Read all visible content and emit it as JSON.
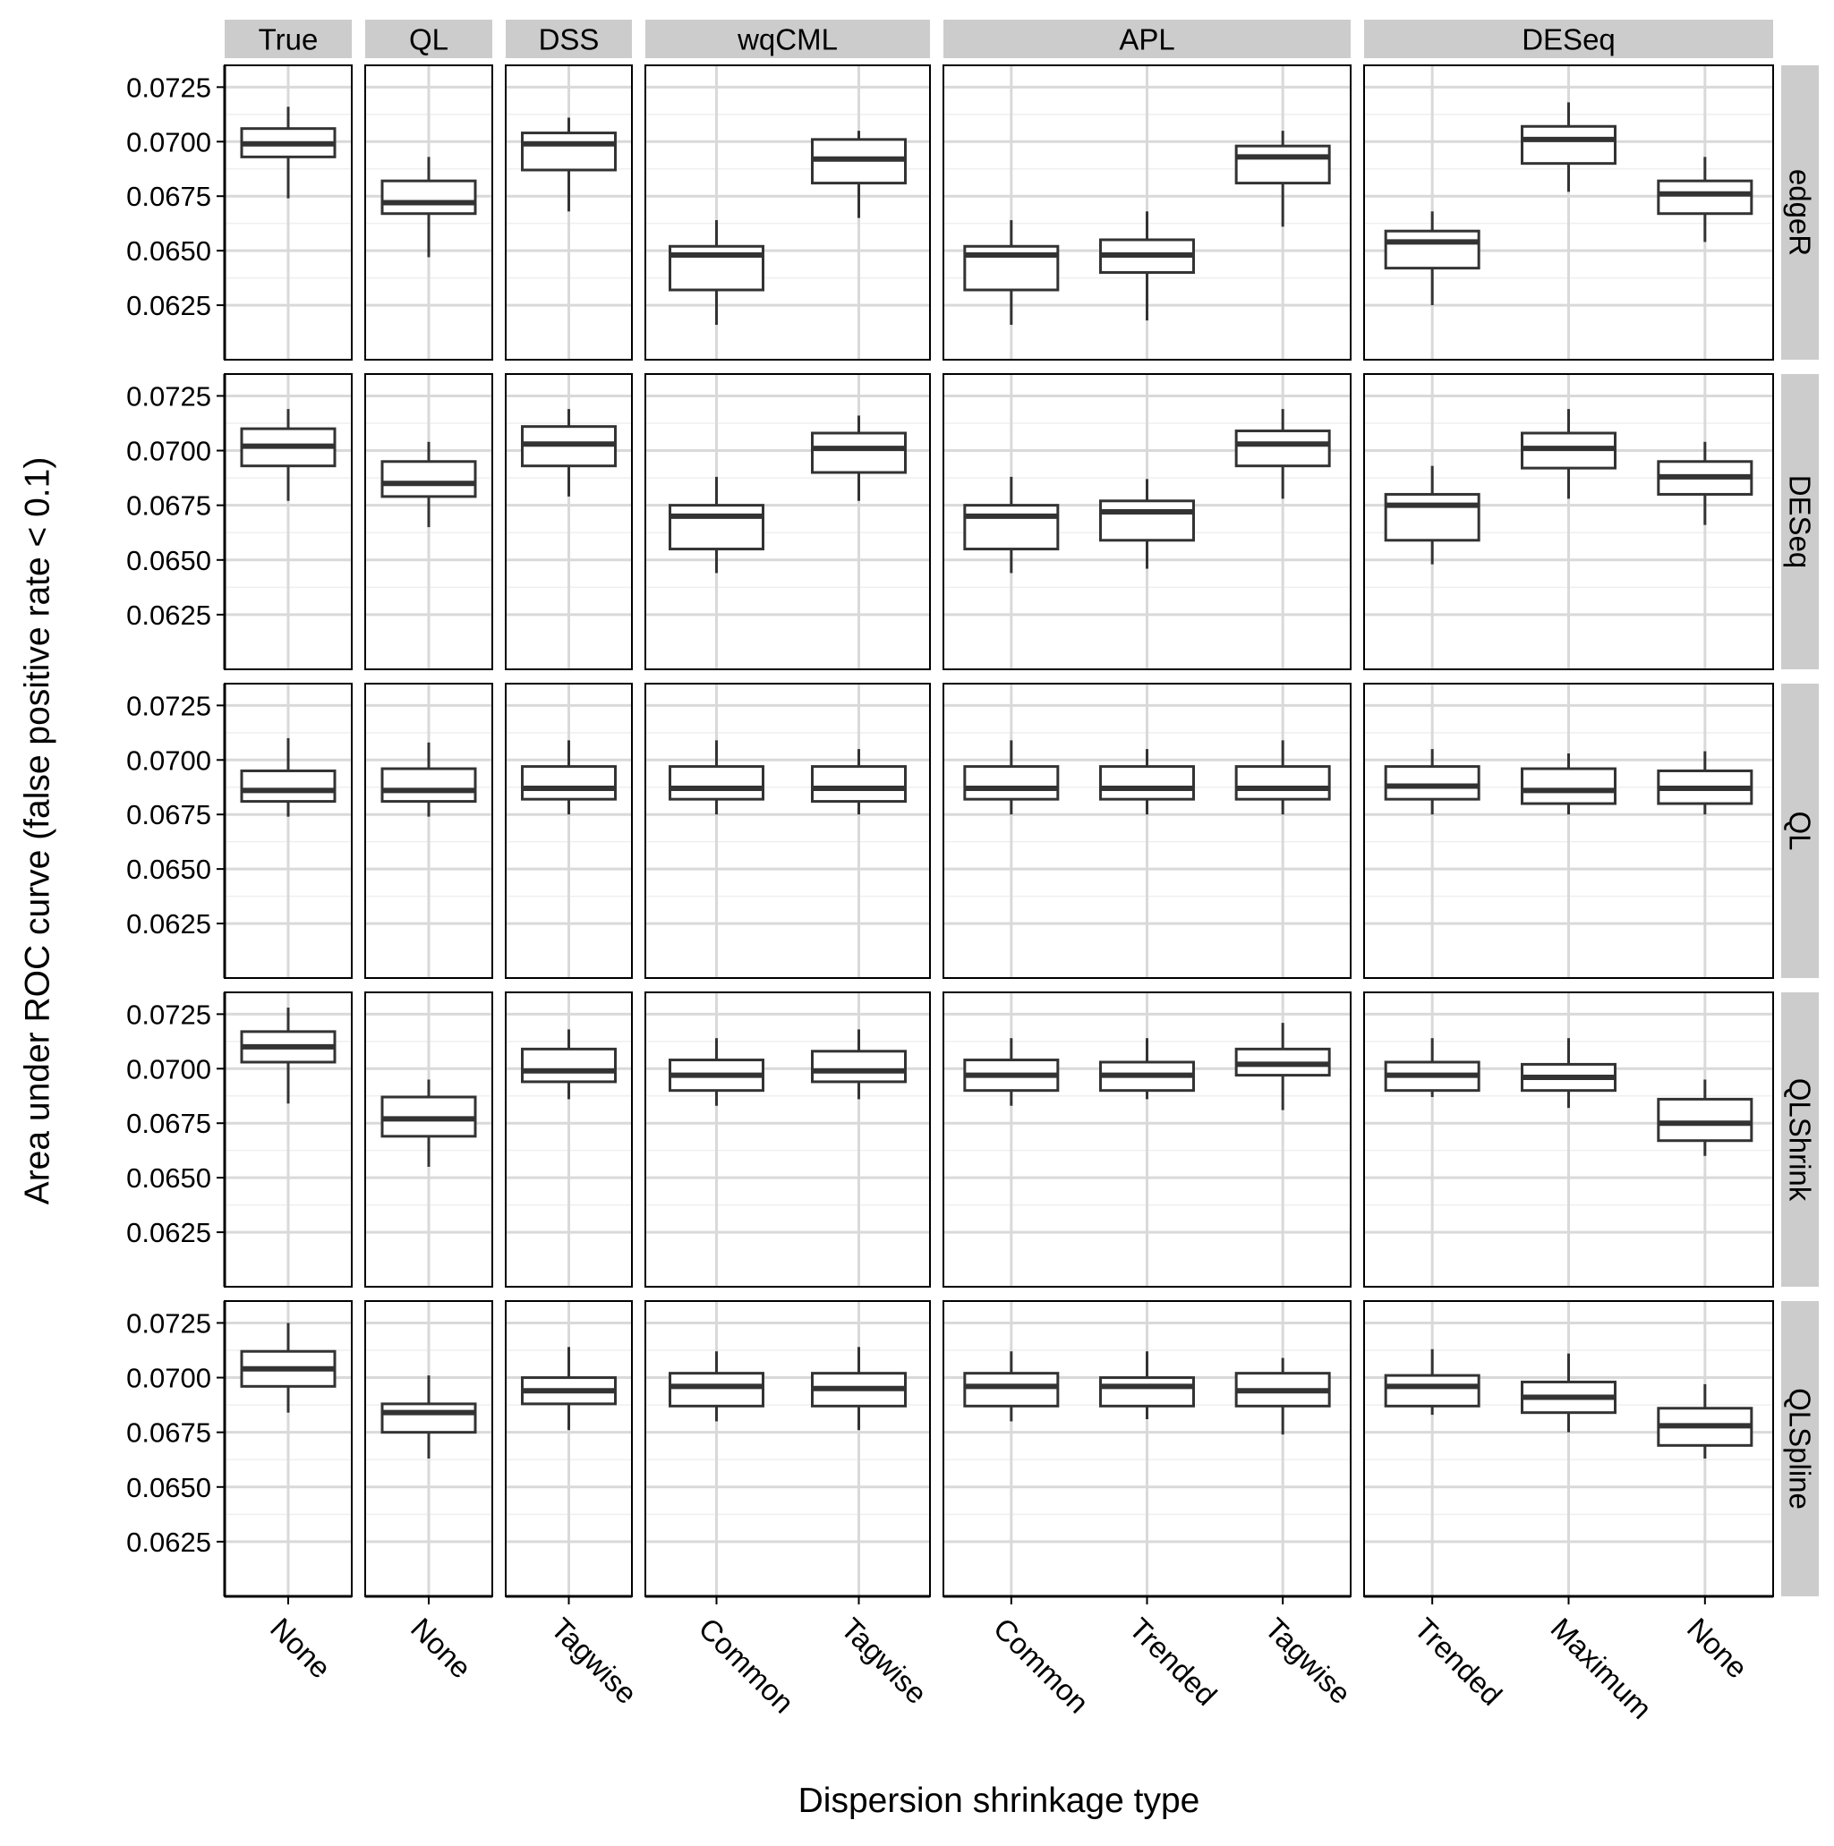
{
  "chart_data": {
    "type": "boxplot",
    "xlabel": "Dispersion shrinkage type",
    "ylabel": "Area under ROC curve (false positive rate < 0.1)",
    "ylim": [
      0.06,
      0.0735
    ],
    "yticks": [
      0.0625,
      0.065,
      0.0675,
      0.07,
      0.0725
    ],
    "ytick_labels": [
      "0.0625",
      "0.0650",
      "0.0675",
      "0.0700",
      "0.0725"
    ],
    "grid": true,
    "colors": {
      "panel_bg": "#ffffff",
      "grid_major": "#d9d9d9",
      "grid_minor": "#efefef",
      "strip_bg": "#cccccc",
      "box_stroke": "#333333",
      "panel_border": "#000000"
    },
    "columns": [
      {
        "label": "True",
        "categories": [
          "None"
        ]
      },
      {
        "label": "QL",
        "categories": [
          "None"
        ]
      },
      {
        "label": "DSS",
        "categories": [
          "Tagwise"
        ]
      },
      {
        "label": "wqCML",
        "categories": [
          "Common",
          "Tagwise"
        ]
      },
      {
        "label": "APL",
        "categories": [
          "Common",
          "Trended",
          "Tagwise"
        ]
      },
      {
        "label": "DESeq",
        "categories": [
          "Trended",
          "Maximum",
          "None"
        ]
      }
    ],
    "rows": [
      {
        "label": "edgeR",
        "boxes": [
          [
            [
              0.0674,
              0.0693,
              0.0699,
              0.0706,
              0.0716
            ]
          ],
          [
            [
              0.0647,
              0.0667,
              0.0672,
              0.0682,
              0.0693
            ]
          ],
          [
            [
              0.0668,
              0.0687,
              0.0699,
              0.0704,
              0.0711
            ]
          ],
          [
            [
              0.0616,
              0.0632,
              0.0648,
              0.0652,
              0.0664
            ],
            [
              0.0665,
              0.0681,
              0.0692,
              0.0701,
              0.0705
            ]
          ],
          [
            [
              0.0616,
              0.0632,
              0.0648,
              0.0652,
              0.0664
            ],
            [
              0.0618,
              0.064,
              0.0648,
              0.0655,
              0.0668
            ],
            [
              0.0661,
              0.0681,
              0.0693,
              0.0698,
              0.0705
            ]
          ],
          [
            [
              0.0625,
              0.0642,
              0.0654,
              0.0659,
              0.0668
            ],
            [
              0.0677,
              0.069,
              0.0701,
              0.0707,
              0.0718
            ],
            [
              0.0654,
              0.0667,
              0.0676,
              0.0682,
              0.0693
            ]
          ]
        ]
      },
      {
        "label": "DESeq",
        "boxes": [
          [
            [
              0.0677,
              0.0693,
              0.0702,
              0.071,
              0.0719
            ]
          ],
          [
            [
              0.0665,
              0.0679,
              0.0685,
              0.0695,
              0.0704
            ]
          ],
          [
            [
              0.0679,
              0.0693,
              0.0703,
              0.0711,
              0.0719
            ]
          ],
          [
            [
              0.0644,
              0.0655,
              0.067,
              0.0675,
              0.0688
            ],
            [
              0.0677,
              0.069,
              0.0701,
              0.0708,
              0.0716
            ]
          ],
          [
            [
              0.0644,
              0.0655,
              0.067,
              0.0675,
              0.0688
            ],
            [
              0.0646,
              0.0659,
              0.0672,
              0.0677,
              0.0687
            ],
            [
              0.0678,
              0.0693,
              0.0703,
              0.0709,
              0.0719
            ]
          ],
          [
            [
              0.0648,
              0.0659,
              0.0675,
              0.068,
              0.0693
            ],
            [
              0.0678,
              0.0692,
              0.0701,
              0.0708,
              0.0719
            ],
            [
              0.0666,
              0.068,
              0.0688,
              0.0695,
              0.0704
            ]
          ]
        ]
      },
      {
        "label": "QL",
        "boxes": [
          [
            [
              0.0674,
              0.0681,
              0.0686,
              0.0695,
              0.071
            ]
          ],
          [
            [
              0.0674,
              0.0681,
              0.0686,
              0.0696,
              0.0708
            ]
          ],
          [
            [
              0.0675,
              0.0682,
              0.0687,
              0.0697,
              0.0709
            ]
          ],
          [
            [
              0.0675,
              0.0682,
              0.0687,
              0.0697,
              0.0709
            ],
            [
              0.0675,
              0.0681,
              0.0687,
              0.0697,
              0.0705
            ]
          ],
          [
            [
              0.0675,
              0.0682,
              0.0687,
              0.0697,
              0.0709
            ],
            [
              0.0675,
              0.0682,
              0.0687,
              0.0697,
              0.0705
            ],
            [
              0.0675,
              0.0682,
              0.0687,
              0.0697,
              0.0709
            ]
          ],
          [
            [
              0.0675,
              0.0682,
              0.0688,
              0.0697,
              0.0705
            ],
            [
              0.0675,
              0.068,
              0.0686,
              0.0696,
              0.0703
            ],
            [
              0.0675,
              0.068,
              0.0687,
              0.0695,
              0.0704
            ]
          ]
        ]
      },
      {
        "label": "QLShrink",
        "boxes": [
          [
            [
              0.0684,
              0.0703,
              0.071,
              0.0717,
              0.0728
            ]
          ],
          [
            [
              0.0655,
              0.0669,
              0.0677,
              0.0687,
              0.0695
            ]
          ],
          [
            [
              0.0686,
              0.0694,
              0.0699,
              0.0709,
              0.0718
            ]
          ],
          [
            [
              0.0683,
              0.069,
              0.0697,
              0.0704,
              0.0714
            ],
            [
              0.0686,
              0.0694,
              0.0699,
              0.0708,
              0.0718
            ]
          ],
          [
            [
              0.0683,
              0.069,
              0.0697,
              0.0704,
              0.0714
            ],
            [
              0.0686,
              0.069,
              0.0697,
              0.0703,
              0.0714
            ],
            [
              0.0681,
              0.0697,
              0.0702,
              0.0709,
              0.0721
            ]
          ],
          [
            [
              0.0687,
              0.069,
              0.0697,
              0.0703,
              0.0714
            ],
            [
              0.0682,
              0.069,
              0.0696,
              0.0702,
              0.0714
            ],
            [
              0.066,
              0.0667,
              0.0675,
              0.0686,
              0.0695
            ]
          ]
        ]
      },
      {
        "label": "QLSpline",
        "boxes": [
          [
            [
              0.0684,
              0.0696,
              0.0704,
              0.0712,
              0.0725
            ]
          ],
          [
            [
              0.0663,
              0.0675,
              0.0684,
              0.0688,
              0.0701
            ]
          ],
          [
            [
              0.0676,
              0.0688,
              0.0694,
              0.07,
              0.0714
            ]
          ],
          [
            [
              0.068,
              0.0687,
              0.0696,
              0.0702,
              0.0712
            ],
            [
              0.0676,
              0.0687,
              0.0695,
              0.0702,
              0.0714
            ]
          ],
          [
            [
              0.068,
              0.0687,
              0.0696,
              0.0702,
              0.0712
            ],
            [
              0.0681,
              0.0687,
              0.0696,
              0.07,
              0.0712
            ],
            [
              0.0674,
              0.0687,
              0.0694,
              0.0702,
              0.0709
            ]
          ],
          [
            [
              0.0683,
              0.0687,
              0.0696,
              0.0701,
              0.0713
            ],
            [
              0.0675,
              0.0684,
              0.0691,
              0.0698,
              0.0711
            ],
            [
              0.0663,
              0.0669,
              0.0678,
              0.0686,
              0.0697
            ]
          ]
        ]
      }
    ]
  }
}
